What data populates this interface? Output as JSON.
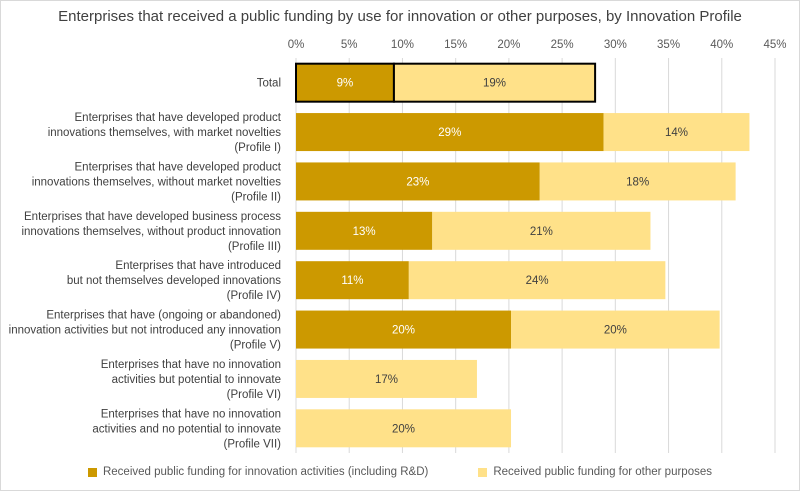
{
  "chart_data": {
    "type": "bar",
    "orientation": "horizontal",
    "stacked": true,
    "title": "Enterprises that received a public funding by use for innovation or other purposes, by Innovation Profile",
    "xlim": [
      0,
      45
    ],
    "xticks": [
      "0%",
      "5%",
      "10%",
      "15%",
      "20%",
      "25%",
      "30%",
      "35%",
      "40%",
      "45%"
    ],
    "tick_values": [
      0,
      5,
      10,
      15,
      20,
      25,
      30,
      35,
      40,
      45
    ],
    "grid": true,
    "legend_position": "bottom",
    "categories": [
      [
        "Total"
      ],
      [
        "Enterprises that have developed product",
        "innovations themselves, with market novelties",
        "(Profile I)"
      ],
      [
        "Enterprises that have developed product",
        "innovations themselves, without market novelties",
        "(Profile II)"
      ],
      [
        "Enterprises that have developed business process",
        "innovations themselves, without product innovation",
        "(Profile III)"
      ],
      [
        "Enterprises that have introduced",
        "but not themselves developed innovations",
        "(Profile IV)"
      ],
      [
        "Enterprises that have (ongoing or abandoned)",
        "innovation activities but not introduced any innovation",
        "(Profile V)"
      ],
      [
        "Enterprises that have no innovation",
        "activities but potential to innovate",
        "(Profile VI)"
      ],
      [
        "Enterprises that have no innovation",
        "activities and no potential to innovate",
        "(Profile VII)"
      ]
    ],
    "series": [
      {
        "name": "Received public funding for innovation activities (including R&D)",
        "color": "#cc9900",
        "label_color": "#ffffff",
        "values": [
          9.2,
          28.9,
          22.9,
          12.8,
          10.6,
          20.2,
          0,
          0
        ],
        "labels": [
          "9%",
          "29%",
          "23%",
          "13%",
          "11%",
          "20%",
          "",
          ""
        ]
      },
      {
        "name": "Received public funding for other purposes",
        "color": "#ffe189",
        "label_color": "#404040",
        "values": [
          18.9,
          13.7,
          18.4,
          20.5,
          24.1,
          19.6,
          17.0,
          20.2
        ],
        "labels": [
          "19%",
          "14%",
          "18%",
          "21%",
          "24%",
          "20%",
          "17%",
          "20%"
        ]
      }
    ],
    "highlighted_category_index": 0
  }
}
